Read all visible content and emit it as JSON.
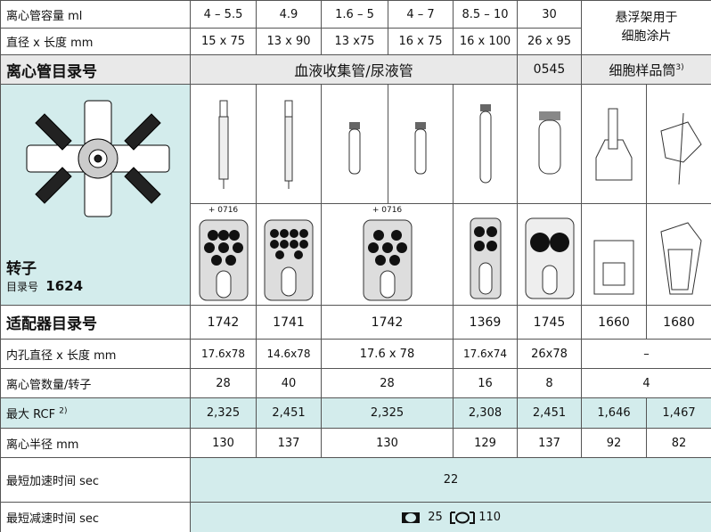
{
  "rows": {
    "capacity": {
      "label": "离心管容量 ml",
      "values": [
        "4 – 5.5",
        "4.9",
        "1.6 – 5",
        "4 – 7",
        "8.5 – 10",
        "30"
      ]
    },
    "size": {
      "label": "直径 x 长度 mm",
      "values": [
        "15 x 75",
        "13 x 90",
        "13 x75",
        "16 x 75",
        "16 x 100",
        "26 x 95"
      ]
    },
    "suspension_note": [
      "悬浮架用于",
      "细胞涂片"
    ],
    "catalog": {
      "label": "离心管目录号",
      "values": [
        "血液收集管/尿液管",
        "0545"
      ],
      "cell_sample": "细胞样品筒",
      "cell_sample_note": "3)"
    },
    "rotor": {
      "label": "转子",
      "catalog_label": "目录号",
      "catalog_number": "1624"
    },
    "adapter_notes": [
      "+ 0716",
      "+ 0716"
    ],
    "adapter": {
      "label": "适配器目录号",
      "values": [
        "1742",
        "1741",
        "1742",
        "1369",
        "1745",
        "1660",
        "1680"
      ]
    },
    "bore": {
      "label": "内孔直径 x 长度 mm",
      "values": [
        "17.6x78",
        "14.6x78",
        "17.6 x 78",
        "17.6x74",
        "26x78",
        "–"
      ]
    },
    "tubes_per_rotor": {
      "label": "离心管数量/转子",
      "values": [
        "28",
        "40",
        "28",
        "16",
        "8",
        "4"
      ]
    },
    "max_rcf": {
      "label": "最大 RCF",
      "note": "2)",
      "values": [
        "2,325",
        "2,451",
        "2,325",
        "2,308",
        "2,451",
        "1,646",
        "1,467"
      ]
    },
    "radius": {
      "label": "离心半径 mm",
      "values": [
        "130",
        "137",
        "130",
        "129",
        "137",
        "92",
        "82"
      ]
    },
    "accel": {
      "label": "最短加速时间 sec",
      "value": "22"
    },
    "decel": {
      "label": "最短减速时间 sec",
      "values": [
        "25",
        "110"
      ]
    }
  }
}
